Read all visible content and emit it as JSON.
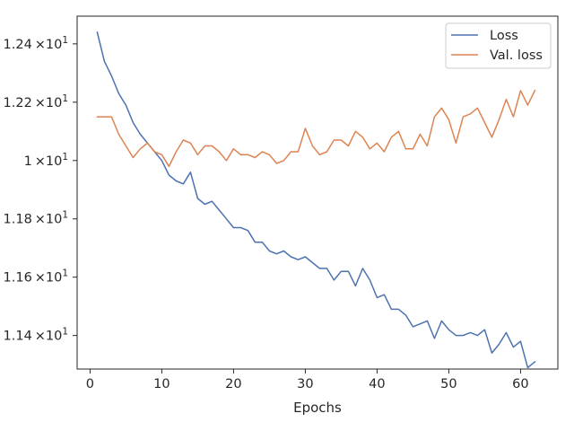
{
  "chart_data": {
    "type": "line",
    "title": "",
    "xlabel": "Epochs",
    "ylabel": "",
    "xlim": [
      -1.8,
      65.2
    ],
    "ylim": [
      11.285,
      12.495
    ],
    "xticks": [
      0,
      10,
      20,
      30,
      40,
      50,
      60
    ],
    "xtick_labels": [
      "0",
      "10",
      "20",
      "30",
      "40",
      "50",
      "60"
    ],
    "yticks": [
      11.4,
      11.6,
      11.8,
      12.0,
      12.2,
      12.4
    ],
    "ytick_labels": [
      {
        "mantissa": "1.14",
        "suffix": "×10",
        "exp": "1"
      },
      {
        "mantissa": "1.16",
        "suffix": "×10",
        "exp": "1"
      },
      {
        "mantissa": "1.18",
        "suffix": "×10",
        "exp": "1"
      },
      {
        "mantissa": "1",
        "suffix": "×10",
        "exp": "1"
      },
      {
        "mantissa": "1.22",
        "suffix": "×10",
        "exp": "1"
      },
      {
        "mantissa": "1.24",
        "suffix": "×10",
        "exp": "1"
      }
    ],
    "grid": false,
    "legend_position": "top-right",
    "x": [
      1,
      2,
      3,
      4,
      5,
      6,
      7,
      8,
      9,
      10,
      11,
      12,
      13,
      14,
      15,
      16,
      17,
      18,
      19,
      20,
      21,
      22,
      23,
      24,
      25,
      26,
      27,
      28,
      29,
      30,
      31,
      32,
      33,
      34,
      35,
      36,
      37,
      38,
      39,
      40,
      41,
      42,
      43,
      44,
      45,
      46,
      47,
      48,
      49,
      50,
      51,
      52,
      53,
      54,
      55,
      56,
      57,
      58,
      59,
      60,
      61,
      62
    ],
    "series": [
      {
        "name": "Loss",
        "color": "#4c72b0",
        "values": [
          12.44,
          12.34,
          12.29,
          12.23,
          12.19,
          12.13,
          12.09,
          12.06,
          12.03,
          12.0,
          11.95,
          11.93,
          11.92,
          11.96,
          11.87,
          11.85,
          11.86,
          11.83,
          11.8,
          11.77,
          11.77,
          11.76,
          11.72,
          11.72,
          11.69,
          11.68,
          11.69,
          11.67,
          11.66,
          11.67,
          11.65,
          11.63,
          11.63,
          11.59,
          11.62,
          11.62,
          11.57,
          11.63,
          11.59,
          11.53,
          11.54,
          11.49,
          11.49,
          11.47,
          11.43,
          11.44,
          11.45,
          11.39,
          11.45,
          11.42,
          11.4,
          11.4,
          11.41,
          11.4,
          11.42,
          11.34,
          11.37,
          11.41,
          11.36,
          11.38,
          11.29,
          11.31
        ]
      },
      {
        "name": "Val. loss",
        "color": "#dd8452",
        "values": [
          12.15,
          12.15,
          12.15,
          12.09,
          12.05,
          12.01,
          12.04,
          12.06,
          12.03,
          12.02,
          11.98,
          12.03,
          12.07,
          12.06,
          12.02,
          12.05,
          12.05,
          12.03,
          12.0,
          12.04,
          12.02,
          12.02,
          12.01,
          12.03,
          12.02,
          11.99,
          12.0,
          12.03,
          12.03,
          12.11,
          12.05,
          12.02,
          12.03,
          12.07,
          12.07,
          12.05,
          12.1,
          12.08,
          12.04,
          12.06,
          12.03,
          12.08,
          12.1,
          12.04,
          12.04,
          12.09,
          12.05,
          12.15,
          12.18,
          12.14,
          12.06,
          12.15,
          12.16,
          12.18,
          12.13,
          12.08,
          12.14,
          12.21,
          12.15,
          12.24,
          12.19,
          12.24
        ]
      }
    ]
  }
}
